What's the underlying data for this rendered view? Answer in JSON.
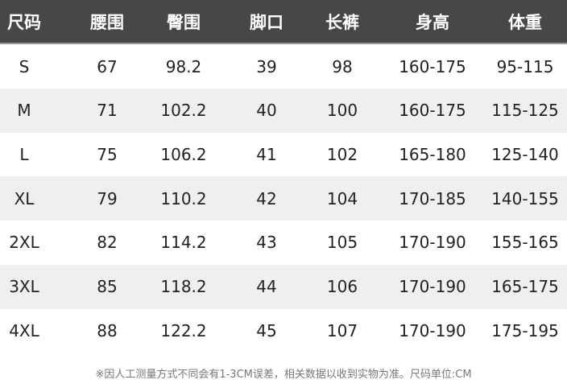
{
  "headers": [
    "尺码",
    "腰围",
    "臀围",
    "脚口",
    "长裤",
    "身高",
    "体重"
  ],
  "rows": [
    [
      "S",
      "67",
      "98.2",
      "39",
      "98",
      "160-175",
      "95-115"
    ],
    [
      "M",
      "71",
      "102.2",
      "40",
      "100",
      "160-175",
      "115-125"
    ],
    [
      "L",
      "75",
      "106.2",
      "41",
      "102",
      "165-180",
      "125-140"
    ],
    [
      "XL",
      "79",
      "110.2",
      "42",
      "104",
      "170-185",
      "140-155"
    ],
    [
      "2XL",
      "82",
      "114.2",
      "43",
      "105",
      "170-190",
      "155-165"
    ],
    [
      "3XL",
      "85",
      "118.2",
      "44",
      "106",
      "170-190",
      "165-175"
    ],
    [
      "4XL",
      "88",
      "122.2",
      "45",
      "107",
      "170-190",
      "175-195"
    ]
  ],
  "footnote": "※因人工测量方式不同会有1-3CM误差，相关数据以收到实物为准。尺码单位:CM",
  "colors": {
    "header_bg": "#474747",
    "alt_row_bg": "#efefef"
  }
}
